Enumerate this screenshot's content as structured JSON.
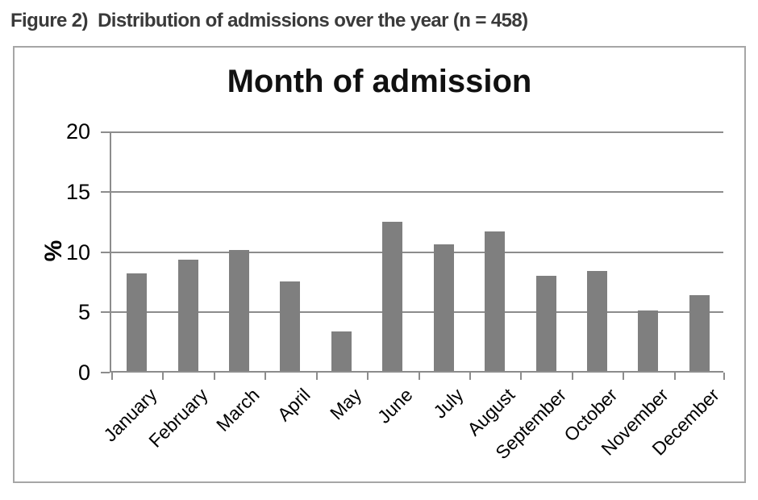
{
  "figure": {
    "caption": "Figure 2)  Distribution of admissions over the year (n = 458)"
  },
  "chart_data": {
    "type": "bar",
    "title": "Month of admission",
    "categories": [
      "January",
      "February",
      "March",
      "April",
      "May",
      "June",
      "July",
      "August",
      "September",
      "October",
      "November",
      "December"
    ],
    "values": [
      8.1,
      9.2,
      10.0,
      7.4,
      3.3,
      12.4,
      10.5,
      11.6,
      7.9,
      8.3,
      5.0,
      6.3
    ],
    "xlabel": "",
    "ylabel": "%",
    "ylim": [
      0,
      20
    ],
    "yticks": [
      0,
      5,
      10,
      15,
      20
    ],
    "grid": true,
    "legend": "none",
    "bar_color": "#7f7f7f",
    "gridline_color": "#8c8c8c",
    "axis_color": "#8c8c8c",
    "title_color": "#111111",
    "caption_color": "#3a3a3a"
  }
}
